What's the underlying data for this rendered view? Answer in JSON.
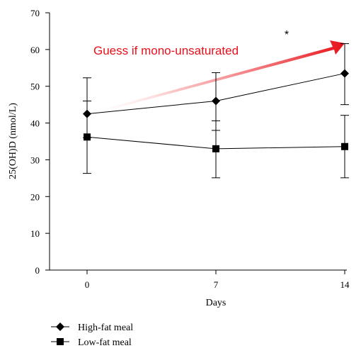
{
  "chart_data": {
    "type": "line",
    "x": [
      0,
      7,
      14
    ],
    "xlabel": "Days",
    "ylabel": "25(OH)D (nmol/L)",
    "ylim": [
      0,
      70
    ],
    "yticks": [
      0,
      10,
      20,
      30,
      40,
      50,
      60,
      70
    ],
    "xticks": [
      0,
      7,
      14
    ],
    "grid": false,
    "legend_position": "bottom-left",
    "series": [
      {
        "name": "High-fat meal",
        "marker": "diamond",
        "values": [
          42.5,
          46,
          53.5
        ],
        "error_low": [
          36,
          38,
          45
        ],
        "error_high": [
          52.3,
          53.7,
          61.6
        ]
      },
      {
        "name": "Low-fat meal",
        "marker": "square",
        "values": [
          36.2,
          33,
          33.6
        ],
        "error_low": [
          26.3,
          25.1,
          25.1
        ],
        "error_high": [
          46,
          40.6,
          42.1
        ]
      }
    ],
    "annotations": {
      "significance": "*",
      "arrow_text": "Guess if mono-unsaturated",
      "arrow_color": "#e8101a"
    }
  }
}
